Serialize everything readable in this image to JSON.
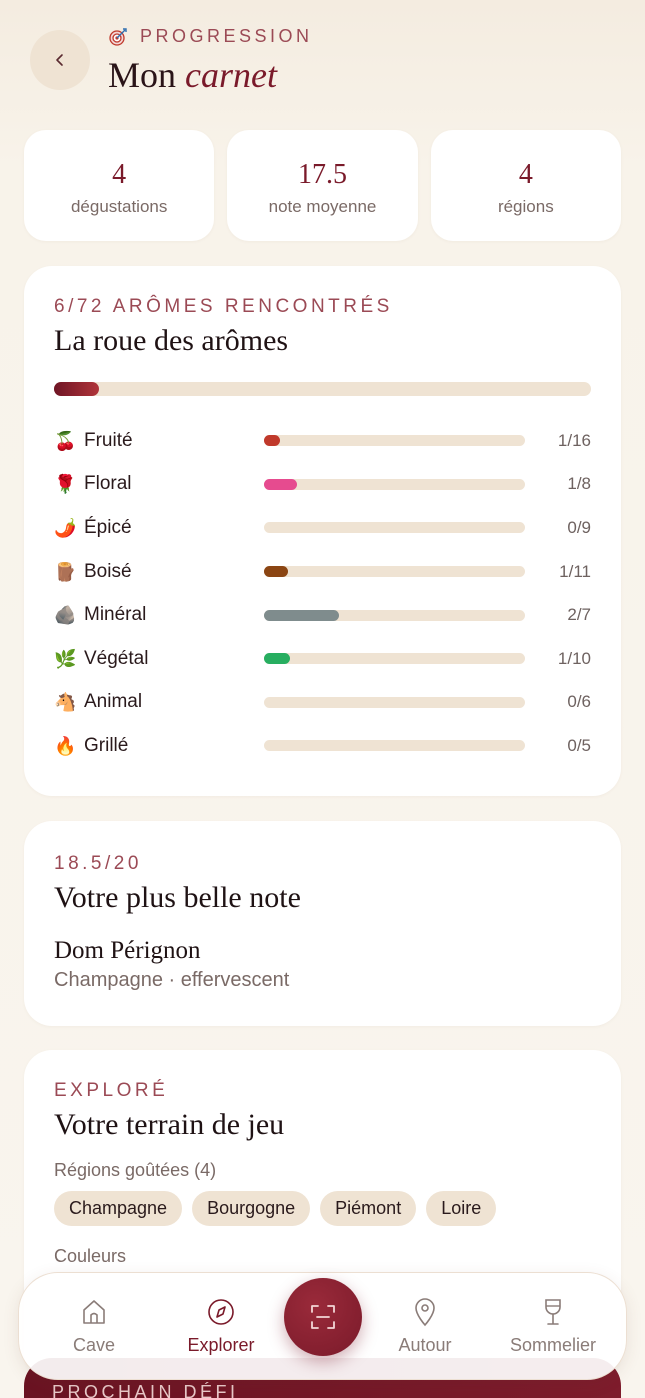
{
  "header": {
    "eyebrow": "PROGRESSION",
    "title_prefix": "Mon",
    "title_emph": "carnet"
  },
  "stats": [
    {
      "value": "4",
      "label": "dégustations"
    },
    {
      "value": "17.5",
      "label": "note moyenne"
    },
    {
      "value": "4",
      "label": "régions"
    }
  ],
  "aromas": {
    "eyebrow": "6/72 ARÔMES RENCONTRÉS",
    "title": "La roue des arômes",
    "overall_progress": 0.083,
    "items": [
      {
        "emoji": "🍒",
        "name": "Fruité",
        "count": "1/16",
        "progress": 0.0625,
        "color": "#c0392b"
      },
      {
        "emoji": "🌹",
        "name": "Floral",
        "count": "1/8",
        "progress": 0.125,
        "color": "#e64b8f"
      },
      {
        "emoji": "🌶️",
        "name": "Épicé",
        "count": "0/9",
        "progress": 0,
        "color": "#c0392b"
      },
      {
        "emoji": "🪵",
        "name": "Boisé",
        "count": "1/11",
        "progress": 0.0909,
        "color": "#8b4513"
      },
      {
        "emoji": "🪨",
        "name": "Minéral",
        "count": "2/7",
        "progress": 0.2857,
        "color": "#7f8c8d"
      },
      {
        "emoji": "🌿",
        "name": "Végétal",
        "count": "1/10",
        "progress": 0.1,
        "color": "#27ae60"
      },
      {
        "emoji": "🐴",
        "name": "Animal",
        "count": "0/6",
        "progress": 0,
        "color": "#8b4513"
      },
      {
        "emoji": "🔥",
        "name": "Grillé",
        "count": "0/5",
        "progress": 0,
        "color": "#e67e22"
      }
    ]
  },
  "best": {
    "eyebrow": "18.5/20",
    "title": "Votre plus belle note",
    "wine": "Dom Pérignon",
    "subtitle": "Champagne · effervescent"
  },
  "explored": {
    "eyebrow": "EXPLORÉ",
    "title": "Votre terrain de jeu",
    "regions_label": "Régions goûtées (4)",
    "regions": [
      "Champagne",
      "Bourgogne",
      "Piémont",
      "Loire"
    ],
    "colors_label": "Couleurs"
  },
  "challenge": {
    "eyebrow": "PROCHAIN DÉFI"
  },
  "nav": {
    "items": [
      {
        "label": "Cave",
        "icon": "house-icon"
      },
      {
        "label": "Explorer",
        "icon": "compass-icon"
      },
      {
        "label": "Autour",
        "icon": "map-pin-icon"
      },
      {
        "label": "Sommelier",
        "icon": "wine-glass-icon"
      }
    ],
    "active": "Explorer",
    "scan_icon": "scan-icon"
  }
}
